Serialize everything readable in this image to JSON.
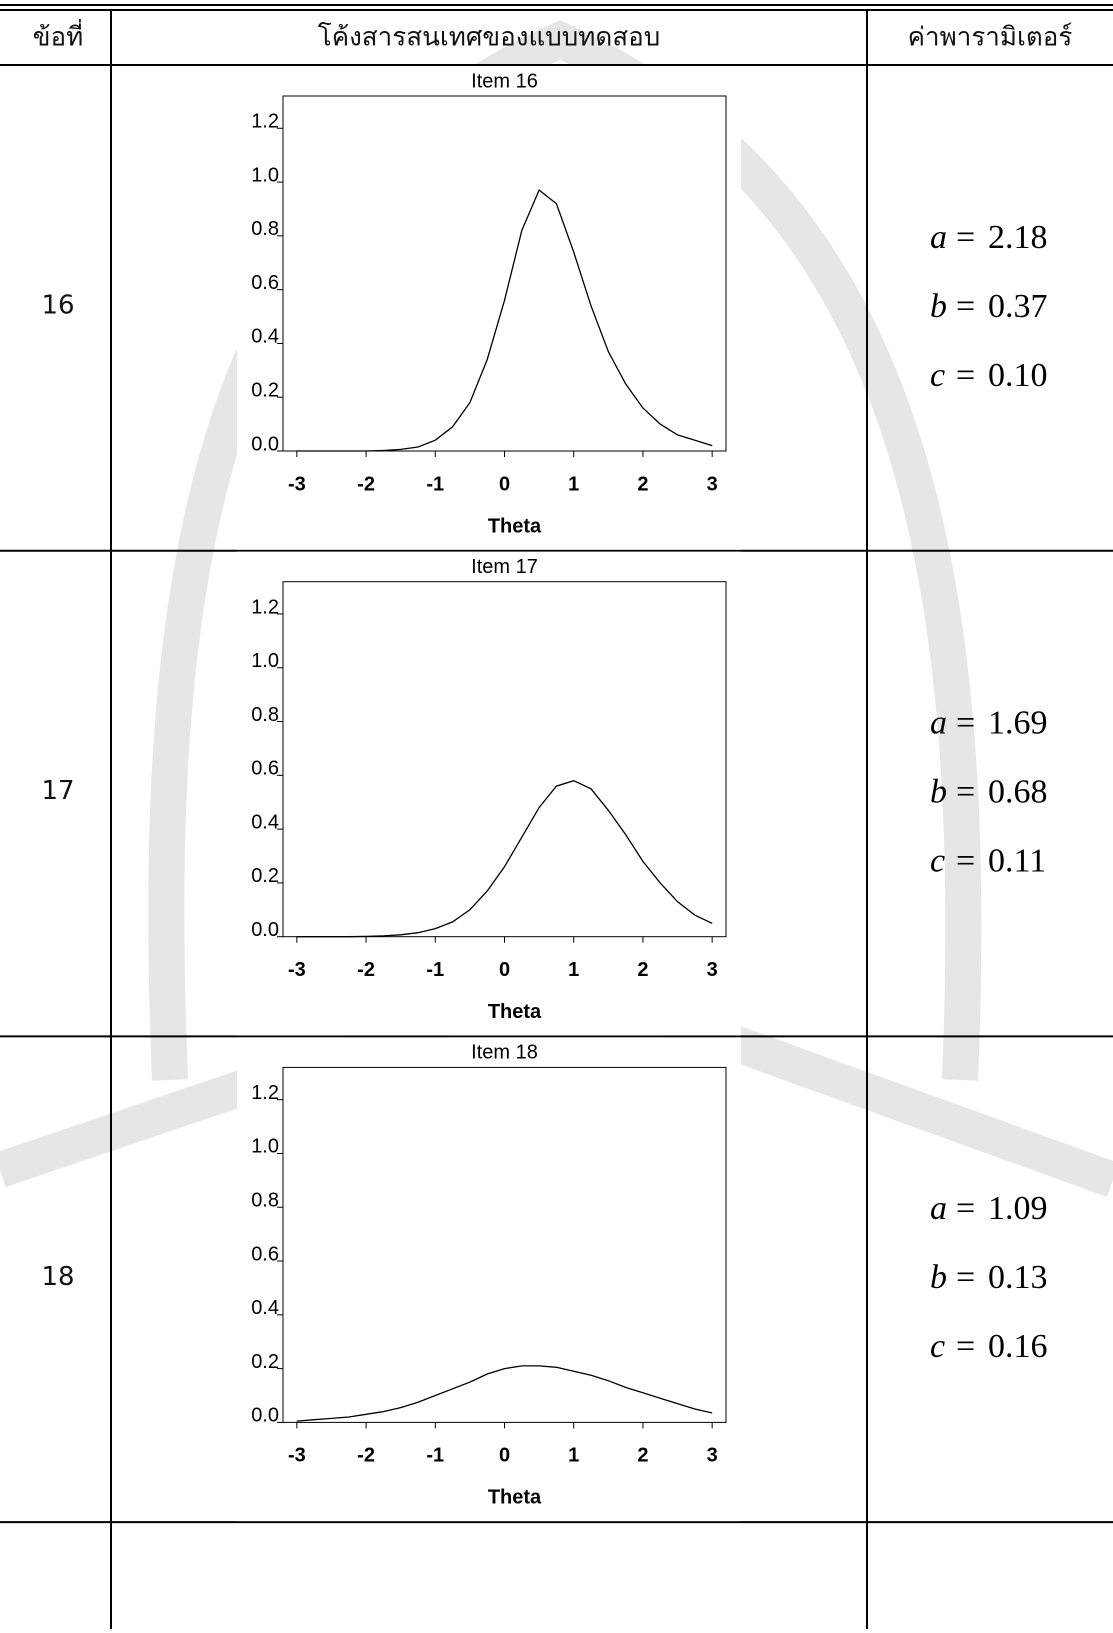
{
  "table": {
    "header": [
      "ข้อที่",
      "โค้งสารสนเทศของแบบทดสอบ",
      "ค่าพารามิเตอร์"
    ],
    "rows": [
      {
        "item": "16",
        "chart": {
          "type": "line",
          "title": "Item 16",
          "x_label": "Theta",
          "x": [
            -3,
            -2.75,
            -2.5,
            -2.25,
            -2,
            -1.75,
            -1.5,
            -1.25,
            -1,
            -0.75,
            -0.5,
            -0.25,
            0,
            0.25,
            0.5,
            0.75,
            1,
            1.25,
            1.5,
            1.75,
            2,
            2.25,
            2.5,
            2.75,
            3
          ],
          "values": [
            0,
            0,
            0,
            0,
            0,
            0.002,
            0.006,
            0.015,
            0.04,
            0.09,
            0.18,
            0.34,
            0.56,
            0.82,
            0.97,
            0.92,
            0.74,
            0.54,
            0.37,
            0.25,
            0.16,
            0.1,
            0.06,
            0.04,
            0.02
          ],
          "color": "#000000",
          "xlim": [
            -3.2,
            3.2
          ],
          "ylim": [
            0,
            1.32
          ],
          "xticks": [
            -3,
            -2,
            -1,
            0,
            1,
            2,
            3
          ],
          "yticks": [
            {
              "value": 0,
              "label": "0.0"
            },
            {
              "value": 0.2,
              "label": "0.2"
            },
            {
              "value": 0.4,
              "label": "0.4"
            },
            {
              "value": 0.6,
              "label": "0.6"
            },
            {
              "value": 0.8,
              "label": "0.8"
            },
            {
              "value": 1,
              "label": "1.0"
            },
            {
              "value": 1.2,
              "label": "1.2"
            }
          ]
        },
        "params": [
          {
            "symbol": "a",
            "value": "2.18"
          },
          {
            "symbol": "b",
            "value": "0.37"
          },
          {
            "symbol": "c",
            "value": "0.10"
          }
        ]
      },
      {
        "item": "17",
        "chart": {
          "type": "line",
          "title": "Item 17",
          "x_label": "Theta",
          "x": [
            -3,
            -2.75,
            -2.5,
            -2.25,
            -2,
            -1.75,
            -1.5,
            -1.25,
            -1,
            -0.75,
            -0.5,
            -0.25,
            0,
            0.25,
            0.5,
            0.75,
            1,
            1.25,
            1.5,
            1.75,
            2,
            2.25,
            2.5,
            2.75,
            3
          ],
          "values": [
            0,
            0,
            0,
            0,
            0.001,
            0.003,
            0.007,
            0.015,
            0.03,
            0.055,
            0.1,
            0.17,
            0.26,
            0.37,
            0.48,
            0.56,
            0.58,
            0.55,
            0.47,
            0.38,
            0.28,
            0.2,
            0.13,
            0.08,
            0.05
          ],
          "color": "#000000",
          "xlim": [
            -3.2,
            3.2
          ],
          "ylim": [
            0,
            1.32
          ],
          "xticks": [
            -3,
            -2,
            -1,
            0,
            1,
            2,
            3
          ],
          "yticks": [
            {
              "value": 0,
              "label": "0.0"
            },
            {
              "value": 0.2,
              "label": "0.2"
            },
            {
              "value": 0.4,
              "label": "0.4"
            },
            {
              "value": 0.6,
              "label": "0.6"
            },
            {
              "value": 0.8,
              "label": "0.8"
            },
            {
              "value": 1,
              "label": "1.0"
            },
            {
              "value": 1.2,
              "label": "1.2"
            }
          ]
        },
        "params": [
          {
            "symbol": "a",
            "value": "1.69"
          },
          {
            "symbol": "b",
            "value": "0.68"
          },
          {
            "symbol": "c",
            "value": "0.11"
          }
        ]
      },
      {
        "item": "18",
        "chart": {
          "type": "line",
          "title": "Item 18",
          "x_label": "Theta",
          "x": [
            -3,
            -2.75,
            -2.5,
            -2.25,
            -2,
            -1.75,
            -1.5,
            -1.25,
            -1,
            -0.75,
            -0.5,
            -0.25,
            0,
            0.25,
            0.5,
            0.75,
            1,
            1.25,
            1.5,
            1.75,
            2,
            2.25,
            2.5,
            2.75,
            3
          ],
          "values": [
            0.005,
            0.01,
            0.015,
            0.02,
            0.03,
            0.04,
            0.055,
            0.075,
            0.1,
            0.125,
            0.15,
            0.18,
            0.2,
            0.21,
            0.21,
            0.205,
            0.19,
            0.175,
            0.155,
            0.13,
            0.11,
            0.09,
            0.07,
            0.05,
            0.035
          ],
          "color": "#000000",
          "xlim": [
            -3.2,
            3.2
          ],
          "ylim": [
            0,
            1.32
          ],
          "xticks": [
            -3,
            -2,
            -1,
            0,
            1,
            2,
            3
          ],
          "yticks": [
            {
              "value": 0,
              "label": "0.0"
            },
            {
              "value": 0.2,
              "label": "0.2"
            },
            {
              "value": 0.4,
              "label": "0.4"
            },
            {
              "value": 0.6,
              "label": "0.6"
            },
            {
              "value": 0.8,
              "label": "0.8"
            },
            {
              "value": 1,
              "label": "1.0"
            },
            {
              "value": 1.2,
              "label": "1.2"
            }
          ]
        },
        "params": [
          {
            "symbol": "a",
            "value": "1.09"
          },
          {
            "symbol": "b",
            "value": "0.13"
          },
          {
            "symbol": "c",
            "value": "0.16"
          }
        ]
      }
    ]
  }
}
